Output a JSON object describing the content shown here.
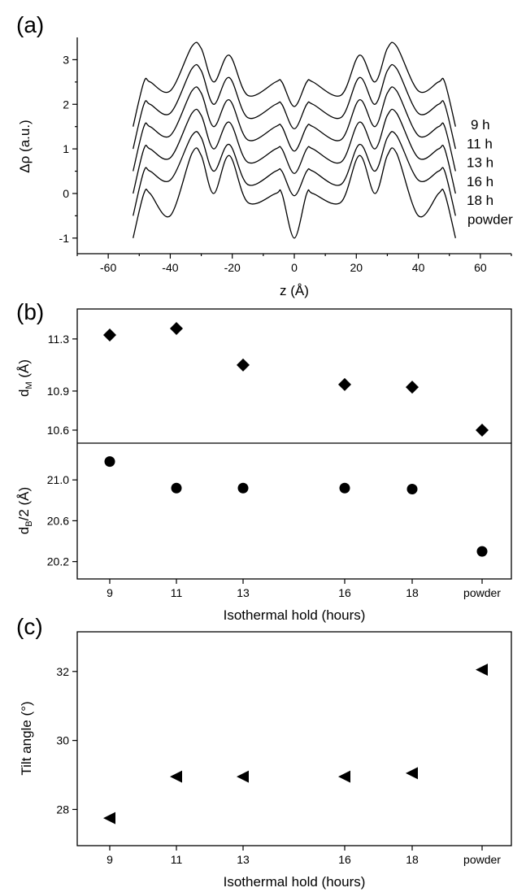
{
  "chart_data": [
    {
      "panel": "(a)",
      "type": "line",
      "xlabel": "z (Å)",
      "ylabel": "Δρ (a.u.)",
      "xlim": [
        -70,
        70
      ],
      "ylim": [
        -1.35,
        3.5
      ],
      "xticks": [
        -60,
        -40,
        -20,
        0,
        20,
        40,
        60
      ],
      "yticks": [
        -1,
        0,
        1,
        2,
        3
      ],
      "profile_z": [
        -52,
        -48.5,
        -46.5,
        -40,
        -33,
        -30,
        -26,
        -21,
        -15,
        -6,
        -4,
        0,
        4,
        6,
        15,
        21,
        26,
        30,
        33,
        40,
        46.5,
        48.5,
        52
      ],
      "series": [
        {
          "name": "9 h",
          "values": [
            1.5,
            2.5,
            2.5,
            2.3,
            3.3,
            3.25,
            2.5,
            3.1,
            2.2,
            2.5,
            2.5,
            1.95,
            2.5,
            2.5,
            2.2,
            3.1,
            2.5,
            3.25,
            3.3,
            2.3,
            2.5,
            2.5,
            1.5
          ]
        },
        {
          "name": "11 h",
          "values": [
            1.0,
            2.0,
            2.0,
            1.8,
            2.8,
            2.75,
            2.0,
            2.6,
            1.7,
            2.0,
            2.0,
            1.45,
            2.0,
            2.0,
            1.7,
            2.6,
            2.0,
            2.75,
            2.8,
            1.8,
            2.0,
            2.0,
            1.0
          ]
        },
        {
          "name": "13 h",
          "values": [
            0.5,
            1.5,
            1.5,
            1.3,
            2.3,
            2.25,
            1.5,
            2.1,
            1.2,
            1.5,
            1.5,
            0.95,
            1.5,
            1.5,
            1.2,
            2.1,
            1.5,
            2.25,
            2.3,
            1.3,
            1.5,
            1.5,
            0.5
          ]
        },
        {
          "name": "16 h",
          "values": [
            0.0,
            1.0,
            1.0,
            0.8,
            1.8,
            1.75,
            1.0,
            1.6,
            0.7,
            1.0,
            1.0,
            0.45,
            1.0,
            1.0,
            0.7,
            1.6,
            1.0,
            1.75,
            1.8,
            0.8,
            1.0,
            1.0,
            0.0
          ]
        },
        {
          "name": "18 h",
          "values": [
            -0.5,
            0.5,
            0.5,
            0.3,
            1.3,
            1.25,
            0.5,
            1.1,
            0.2,
            0.5,
            0.5,
            -0.05,
            0.5,
            0.5,
            0.2,
            1.1,
            0.5,
            1.25,
            1.3,
            0.3,
            0.5,
            0.5,
            -0.5
          ]
        },
        {
          "name": "powder",
          "values": [
            -1.0,
            0.0,
            0.0,
            -0.5,
            0.9,
            0.85,
            0.0,
            0.85,
            -0.2,
            0.0,
            0.0,
            -1.0,
            0.0,
            0.0,
            -0.2,
            0.85,
            0.0,
            0.85,
            0.9,
            -0.5,
            0.0,
            0.0,
            -1.0
          ]
        }
      ]
    },
    {
      "panel": "(b)",
      "type": "scatter",
      "categories": [
        "9",
        "11",
        "13",
        "16",
        "18",
        "powder"
      ],
      "xlabel": "Isothermal hold (hours)",
      "subplots": [
        {
          "ylabel": "dM (Å)",
          "marker": "diamond",
          "values": [
            11.33,
            11.38,
            11.1,
            10.95,
            10.93,
            10.6
          ],
          "ylim": [
            10.5,
            11.53
          ],
          "yticks": [
            10.6,
            10.9,
            11.3
          ],
          "ytick_labels": [
            "10.6",
            "10.9",
            "11.3"
          ]
        },
        {
          "ylabel": "dB/2 (Å)",
          "marker": "circle",
          "values": [
            21.18,
            20.92,
            20.92,
            20.92,
            20.91,
            20.3
          ],
          "ylim": [
            20.03,
            21.36
          ],
          "yticks": [
            20.2,
            20.6,
            21.0
          ],
          "ytick_labels": [
            "20.2",
            "20.6",
            "21.0"
          ]
        }
      ]
    },
    {
      "panel": "(c)",
      "type": "scatter",
      "categories": [
        "9",
        "11",
        "13",
        "16",
        "18",
        "powder"
      ],
      "xlabel": "Isothermal hold (hours)",
      "ylabel": "Tilt angle (°)",
      "marker": "triangle-left",
      "values": [
        27.75,
        28.95,
        28.95,
        28.95,
        29.05,
        32.05
      ],
      "ylim": [
        26.95,
        33.15
      ],
      "yticks": [
        28,
        30,
        32
      ],
      "ytick_labels": [
        "28",
        "30",
        "32"
      ]
    }
  ]
}
